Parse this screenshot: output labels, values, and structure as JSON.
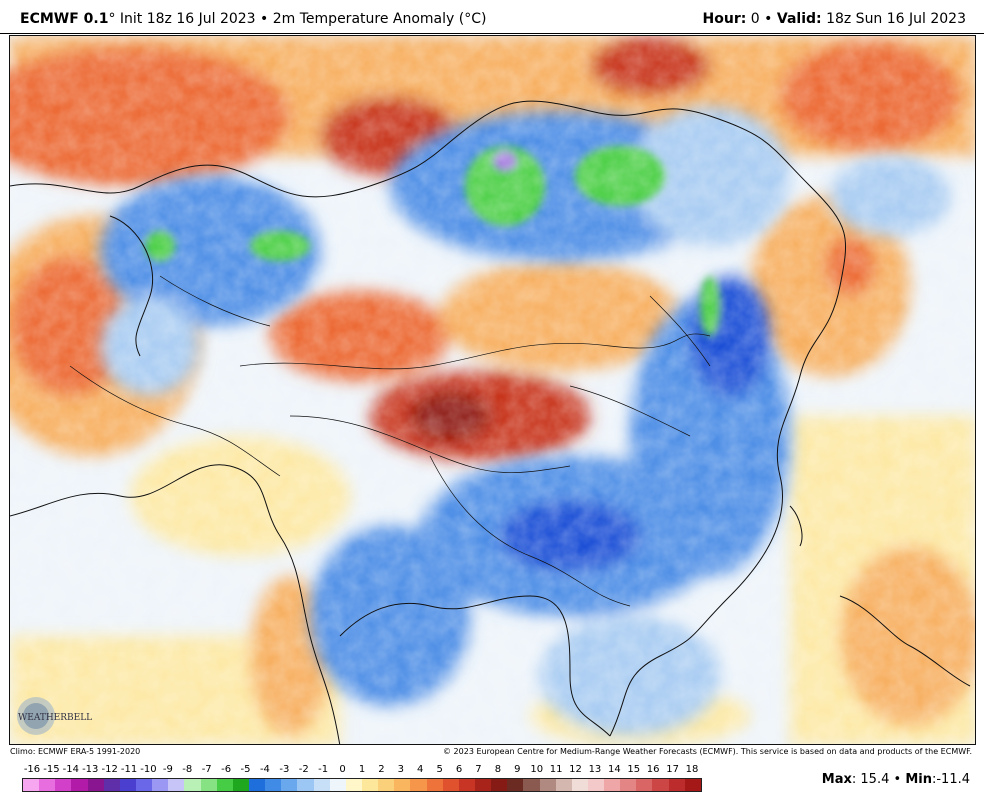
{
  "header": {
    "model": "ECMWF 0.1",
    "degree": "°",
    "init": "Init 18z 16 Jul 2023",
    "bullet": "•",
    "product": "2m Temperature Anomaly (°C)",
    "hour_label": "Hour:",
    "hour_value": "0",
    "valid_label": "Valid:",
    "valid_value": "18z Sun 16 Jul 2023"
  },
  "logo_text": "WEATHERBELL",
  "footer": {
    "climo": "Climo: ECMWF ERA-5 1991-2020",
    "copyright": "© 2023 European Centre for Medium-Range Weather Forecasts (ECMWF). This service is based on data and products of the ECMWF."
  },
  "colorbar": {
    "labels": [
      "-16",
      "-15",
      "-14",
      "-13",
      "-12",
      "-11",
      "-10",
      "-9",
      "-8",
      "-7",
      "-6",
      "-5",
      "-4",
      "-3",
      "-2",
      "-1",
      "0",
      "1",
      "2",
      "3",
      "4",
      "5",
      "6",
      "7",
      "8",
      "9",
      "10",
      "11",
      "12",
      "13",
      "14",
      "15",
      "16",
      "17",
      "18"
    ],
    "colors": [
      "#f7a6f0",
      "#e86ee0",
      "#d23fc8",
      "#b21aa8",
      "#8a1590",
      "#5e2fa8",
      "#4b3fd0",
      "#6a68e8",
      "#9a98f2",
      "#c7c4f7",
      "#b8f0b6",
      "#86e283",
      "#47cc46",
      "#1fa81f",
      "#1e6fdc",
      "#3f8be6",
      "#6aa8ee",
      "#9cc6f3",
      "#c7e0f8",
      "#eef5fb",
      "#fff7c9",
      "#fde79a",
      "#fbd07a",
      "#f9b65f",
      "#f5964a",
      "#ee733a",
      "#e0512d",
      "#c93524",
      "#a8241b",
      "#861a14",
      "#6b2a22",
      "#8a5a50",
      "#b08a80",
      "#d4b8b0",
      "#f0ddd7",
      "#f4c9c9",
      "#eea6a6",
      "#e48585",
      "#d96565",
      "#cc4646",
      "#bd2c2c",
      "#a51818"
    ],
    "palette": {
      "cold_deep": "#1a4fd6",
      "cold": "#4f8fe6",
      "cool": "#a9ccf2",
      "neutral": "#eef4fa",
      "warm_light": "#fde9a6",
      "warm": "#f7b062",
      "hot": "#ec6a34",
      "very_hot": "#c8341f",
      "extreme": "#8e1a12",
      "green": "#4fd04a",
      "purple": "#a47ae0"
    }
  },
  "maxmin": {
    "max_label": "Max",
    "max_value": "15.4",
    "min_label": "Min",
    "min_value": "-11.4",
    "bullet": "•"
  }
}
